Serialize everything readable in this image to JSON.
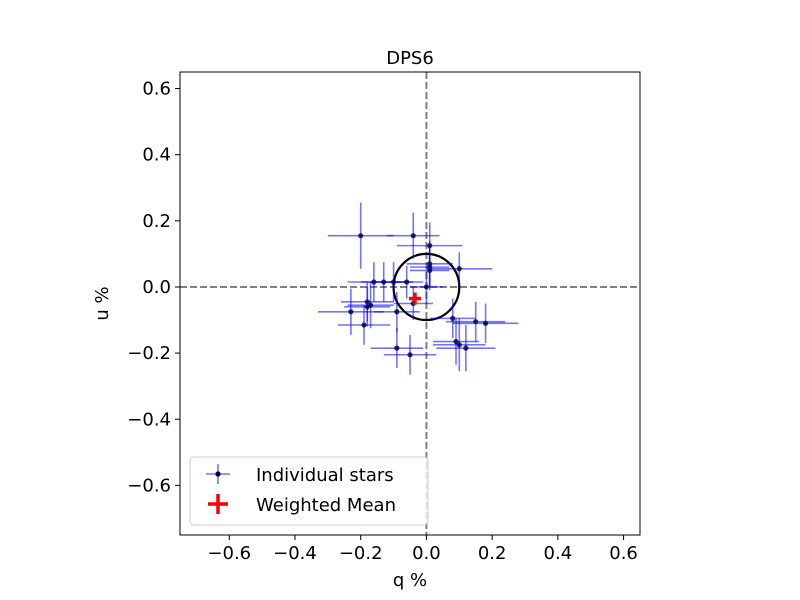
{
  "chart_data": {
    "type": "scatter",
    "title": "DPS6",
    "xlabel": "q %",
    "ylabel": "u %",
    "xlim": [
      -0.75,
      0.65
    ],
    "ylim": [
      -0.75,
      0.65
    ],
    "xticks": [
      -0.6,
      -0.4,
      -0.2,
      0.0,
      0.2,
      0.4,
      0.6
    ],
    "yticks": [
      -0.6,
      -0.4,
      -0.2,
      0.0,
      0.2,
      0.4,
      0.6
    ],
    "xtick_labels": [
      "−0.6",
      "−0.4",
      "−0.2",
      "0.0",
      "0.2",
      "0.4",
      "0.6"
    ],
    "ytick_labels": [
      "−0.6",
      "−0.4",
      "−0.2",
      "0.0",
      "0.2",
      "0.4",
      "0.6"
    ],
    "reference_lines": {
      "x": 0.0,
      "y": 0.0,
      "style": "dashed",
      "color": "#808080"
    },
    "circle": {
      "center": [
        0.0,
        0.0
      ],
      "radius": 0.1,
      "color": "#000000"
    },
    "legend": {
      "placement": "lower-left",
      "entries": [
        "Individual stars",
        "Weighted Mean"
      ]
    },
    "series": [
      {
        "name": "Individual stars",
        "color": "#0000ff",
        "marker_color": "#000033",
        "points": [
          {
            "q": -0.2,
            "u": 0.155,
            "qerr": 0.1,
            "uerr": 0.1
          },
          {
            "q": -0.04,
            "u": 0.155,
            "qerr": 0.08,
            "uerr": 0.07
          },
          {
            "q": 0.01,
            "u": 0.125,
            "qerr": 0.1,
            "uerr": 0.07
          },
          {
            "q": 0.01,
            "u": 0.07,
            "qerr": 0.07,
            "uerr": 0.07
          },
          {
            "q": 0.01,
            "u": 0.06,
            "qerr": 0.06,
            "uerr": 0.06
          },
          {
            "q": 0.01,
            "u": 0.05,
            "qerr": 0.06,
            "uerr": 0.06
          },
          {
            "q": 0.1,
            "u": 0.055,
            "qerr": 0.1,
            "uerr": 0.05
          },
          {
            "q": -0.16,
            "u": 0.015,
            "qerr": 0.08,
            "uerr": 0.06
          },
          {
            "q": -0.13,
            "u": 0.015,
            "qerr": 0.07,
            "uerr": 0.06
          },
          {
            "q": -0.1,
            "u": 0.015,
            "qerr": 0.06,
            "uerr": 0.06
          },
          {
            "q": -0.06,
            "u": 0.015,
            "qerr": 0.05,
            "uerr": 0.05
          },
          {
            "q": 0.0,
            "u": 0.0,
            "qerr": 0.05,
            "uerr": 0.05
          },
          {
            "q": -0.23,
            "u": -0.075,
            "qerr": 0.1,
            "uerr": 0.07
          },
          {
            "q": -0.18,
            "u": -0.045,
            "qerr": 0.08,
            "uerr": 0.06
          },
          {
            "q": -0.18,
            "u": -0.06,
            "qerr": 0.07,
            "uerr": 0.06
          },
          {
            "q": -0.17,
            "u": -0.055,
            "qerr": 0.07,
            "uerr": 0.07
          },
          {
            "q": -0.09,
            "u": -0.075,
            "qerr": 0.07,
            "uerr": 0.06
          },
          {
            "q": -0.04,
            "u": -0.05,
            "qerr": 0.06,
            "uerr": 0.05
          },
          {
            "q": -0.19,
            "u": -0.115,
            "qerr": 0.08,
            "uerr": 0.06
          },
          {
            "q": 0.08,
            "u": -0.095,
            "qerr": 0.07,
            "uerr": 0.06
          },
          {
            "q": 0.15,
            "u": -0.105,
            "qerr": 0.09,
            "uerr": 0.06
          },
          {
            "q": 0.18,
            "u": -0.11,
            "qerr": 0.1,
            "uerr": 0.06
          },
          {
            "q": 0.09,
            "u": -0.165,
            "qerr": 0.07,
            "uerr": 0.07
          },
          {
            "q": 0.1,
            "u": -0.175,
            "qerr": 0.08,
            "uerr": 0.08
          },
          {
            "q": 0.12,
            "u": -0.185,
            "qerr": 0.09,
            "uerr": 0.07
          },
          {
            "q": -0.09,
            "u": -0.185,
            "qerr": 0.08,
            "uerr": 0.06
          },
          {
            "q": -0.05,
            "u": -0.205,
            "qerr": 0.08,
            "uerr": 0.06
          }
        ]
      },
      {
        "name": "Weighted Mean",
        "color": "#ff0000",
        "points": [
          {
            "q": -0.035,
            "u": -0.035,
            "qerr": 0.015,
            "uerr": 0.015
          }
        ]
      }
    ]
  }
}
